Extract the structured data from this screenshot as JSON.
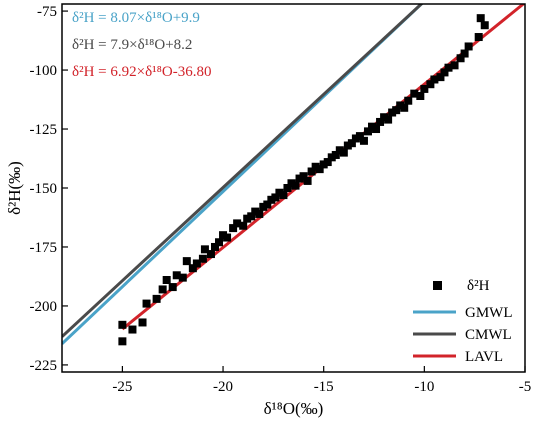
{
  "chart_data": {
    "type": "scatter",
    "xlabel": "δ¹⁸O(‰)",
    "ylabel": "δ²H(‰)",
    "xlim": [
      -28,
      -5
    ],
    "ylim": [
      -228,
      -72
    ],
    "x_ticks": [
      "-25",
      "-20",
      "-15",
      "-10",
      "-5"
    ],
    "y_ticks": [
      "-75",
      "-100",
      "-125",
      "-150",
      "-175",
      "-200",
      "-225"
    ],
    "x_tick_values": [
      -25,
      -20,
      -15,
      -10,
      -5
    ],
    "y_tick_values": [
      -75,
      -100,
      -125,
      -150,
      -175,
      -200,
      -225
    ],
    "grid": false,
    "legend_position": "bottom-right",
    "equations": [
      {
        "text": "δ²H = 8.07×δ¹⁸O+9.9",
        "color": "#4aa3c8"
      },
      {
        "text": "δ²H = 7.9×δ¹⁸O+8.2",
        "color": "#4a4a4a"
      },
      {
        "text": "δ²H = 6.92×δ¹⁸O-36.80",
        "color": "#d2232a"
      }
    ],
    "series": [
      {
        "name": "δ²H",
        "kind": "scatter",
        "color": "#000000",
        "x": [
          -25.0,
          -25.0,
          -24.5,
          -24.0,
          -23.8,
          -23.3,
          -23.0,
          -22.8,
          -22.5,
          -22.3,
          -22.0,
          -21.8,
          -21.5,
          -21.3,
          -21.0,
          -20.9,
          -20.6,
          -20.4,
          -20.2,
          -20.0,
          -19.8,
          -19.5,
          -19.3,
          -19.0,
          -18.8,
          -18.6,
          -18.4,
          -18.2,
          -18.0,
          -17.8,
          -17.6,
          -17.4,
          -17.2,
          -17.0,
          -16.8,
          -16.6,
          -16.4,
          -16.2,
          -16.0,
          -15.8,
          -15.6,
          -15.4,
          -15.2,
          -15.0,
          -14.8,
          -14.6,
          -14.4,
          -14.2,
          -14.0,
          -13.8,
          -13.6,
          -13.4,
          -13.2,
          -13.0,
          -12.8,
          -12.6,
          -12.4,
          -12.2,
          -12.0,
          -11.8,
          -11.6,
          -11.4,
          -11.2,
          -11.0,
          -10.8,
          -10.5,
          -10.2,
          -10.0,
          -9.7,
          -9.5,
          -9.2,
          -9.0,
          -8.8,
          -8.5,
          -8.2,
          -8.0,
          -7.8,
          -7.3,
          -7.0,
          -7.2
        ],
        "y": [
          -208,
          -215,
          -210,
          -207,
          -199,
          -197,
          -193,
          -189,
          -192,
          -187,
          -188,
          -181,
          -184,
          -182,
          -180,
          -176,
          -178,
          -175,
          -173,
          -170,
          -171,
          -167,
          -165,
          -166,
          -163,
          -162,
          -160,
          -161,
          -158,
          -157,
          -155,
          -154,
          -152,
          -153,
          -150,
          -148,
          -149,
          -146,
          -145,
          -147,
          -143,
          -141,
          -142,
          -140,
          -139,
          -137,
          -136,
          -134,
          -135,
          -132,
          -131,
          -129,
          -128,
          -130,
          -126,
          -124,
          -125,
          -122,
          -120,
          -121,
          -118,
          -117,
          -115,
          -116,
          -113,
          -110,
          -111,
          -108,
          -106,
          -104,
          -103,
          -101,
          -99,
          -98,
          -95,
          -93,
          -90,
          -86,
          -81,
          -78
        ]
      },
      {
        "name": "GMWL",
        "kind": "line",
        "color": "#4aa3c8",
        "x": [
          -28,
          -5
        ],
        "y": [
          -216.06,
          -30.45
        ]
      },
      {
        "name": "CMWL",
        "kind": "line",
        "color": "#4a4a4a",
        "x": [
          -28,
          -5
        ],
        "y": [
          -213.0,
          -31.3
        ]
      },
      {
        "name": "LAVL",
        "kind": "line",
        "color": "#d2232a",
        "x": [
          -25,
          -5
        ],
        "y": [
          -209.8,
          -71.4
        ]
      }
    ]
  }
}
